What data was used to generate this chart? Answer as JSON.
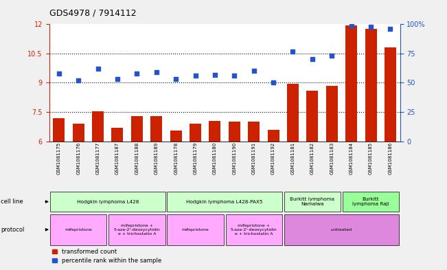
{
  "title": "GDS4978 / 7914112",
  "samples": [
    "GSM1081175",
    "GSM1081176",
    "GSM1081177",
    "GSM1081187",
    "GSM1081188",
    "GSM1081189",
    "GSM1081178",
    "GSM1081179",
    "GSM1081180",
    "GSM1081190",
    "GSM1081191",
    "GSM1081192",
    "GSM1081181",
    "GSM1081182",
    "GSM1081183",
    "GSM1081184",
    "GSM1081185",
    "GSM1081186"
  ],
  "bar_values": [
    7.2,
    6.9,
    7.55,
    6.7,
    7.3,
    7.3,
    6.55,
    6.9,
    7.05,
    7.0,
    7.0,
    6.6,
    8.95,
    8.6,
    8.85,
    11.95,
    11.75,
    10.8
  ],
  "dot_values": [
    58,
    52,
    62,
    53,
    58,
    59,
    53,
    56,
    57,
    56,
    60,
    50,
    77,
    70,
    73,
    99,
    98,
    96
  ],
  "ylim_left": [
    6,
    12
  ],
  "ylim_right": [
    0,
    100
  ],
  "yticks_left": [
    6,
    7.5,
    9,
    10.5,
    12
  ],
  "yticks_right": [
    0,
    25,
    50,
    75,
    100
  ],
  "ytick_labels_left": [
    "6",
    "7.5",
    "9",
    "10.5",
    "12"
  ],
  "ytick_labels_right": [
    "0",
    "25",
    "50",
    "75",
    "100%"
  ],
  "hlines": [
    7.5,
    9.0,
    10.5
  ],
  "bar_color": "#cc2200",
  "dot_color": "#2255cc",
  "cell_line_groups": [
    {
      "label": "Hodgkin lymphoma L428",
      "start": 0,
      "end": 5,
      "color": "#ccffcc"
    },
    {
      "label": "Hodgkin lymphoma L428-PAX5",
      "start": 6,
      "end": 11,
      "color": "#ccffcc"
    },
    {
      "label": "Burkitt lymphoma\nNamalwa",
      "start": 12,
      "end": 14,
      "color": "#ccffcc"
    },
    {
      "label": "Burkitt\nlymphoma Raji",
      "start": 15,
      "end": 17,
      "color": "#99ff99"
    }
  ],
  "protocol_groups": [
    {
      "label": "mifepristone",
      "start": 0,
      "end": 2,
      "color": "#ffaaff"
    },
    {
      "label": "mifepristone +\n5-aza-2'-deoxycytidin\ne + trichostatin A",
      "start": 3,
      "end": 5,
      "color": "#ffaaff"
    },
    {
      "label": "mifepristone",
      "start": 6,
      "end": 8,
      "color": "#ffaaff"
    },
    {
      "label": "mifepristone +\n5-aza-2'-deoxycytidin\ne + trichostatin A",
      "start": 9,
      "end": 11,
      "color": "#ffaaff"
    },
    {
      "label": "untreated",
      "start": 12,
      "end": 17,
      "color": "#dd88dd"
    }
  ],
  "legend_items": [
    {
      "label": "transformed count",
      "color": "#cc2200"
    },
    {
      "label": "percentile rank within the sample",
      "color": "#2255cc"
    }
  ],
  "bg_color": "#f0f0f0",
  "plot_bg": "#ffffff"
}
